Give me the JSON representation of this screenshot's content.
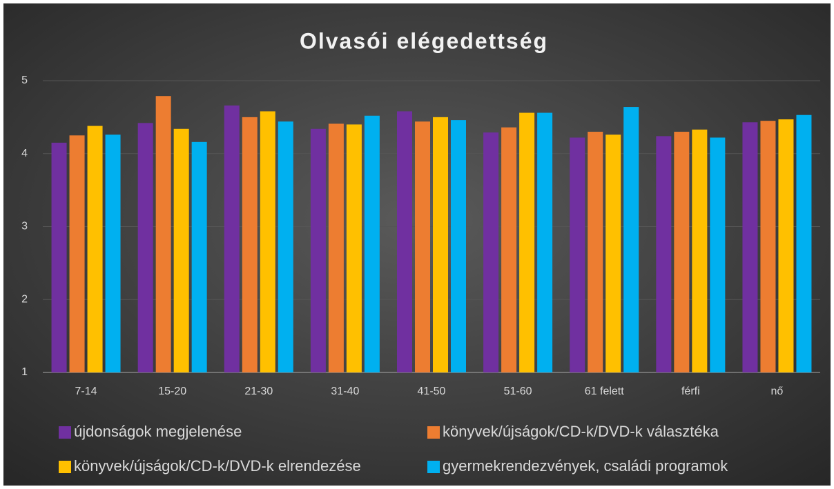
{
  "chart_data": {
    "type": "bar",
    "title": "Olvasói elégedettség",
    "categories": [
      "7-14",
      "15-20",
      "21-30",
      "31-40",
      "41-50",
      "51-60",
      "61 felett",
      "férfi",
      "nő"
    ],
    "series": [
      {
        "name": "újdonságok megjelenése",
        "color": "#7030a0",
        "values": [
          4.15,
          4.42,
          4.66,
          4.34,
          4.58,
          4.29,
          4.22,
          4.24,
          4.43
        ]
      },
      {
        "name": "könyvek/újságok/CD-k/DVD-k választéka",
        "color": "#ed7d31",
        "values": [
          4.25,
          4.79,
          4.5,
          4.41,
          4.44,
          4.36,
          4.3,
          4.3,
          4.45
        ]
      },
      {
        "name": "könyvek/újságok/CD-k/DVD-k elrendezése",
        "color": "#ffc000",
        "values": [
          4.38,
          4.34,
          4.58,
          4.4,
          4.5,
          4.56,
          4.26,
          4.33,
          4.47
        ]
      },
      {
        "name": "gyermekrendezvények, családi programok",
        "color": "#00b0f0",
        "values": [
          4.26,
          4.16,
          4.44,
          4.52,
          4.46,
          4.56,
          4.64,
          4.22,
          4.53
        ]
      }
    ],
    "ylim": [
      1,
      5
    ],
    "yticks": [
      1,
      2,
      3,
      4,
      5
    ],
    "grid": true
  }
}
